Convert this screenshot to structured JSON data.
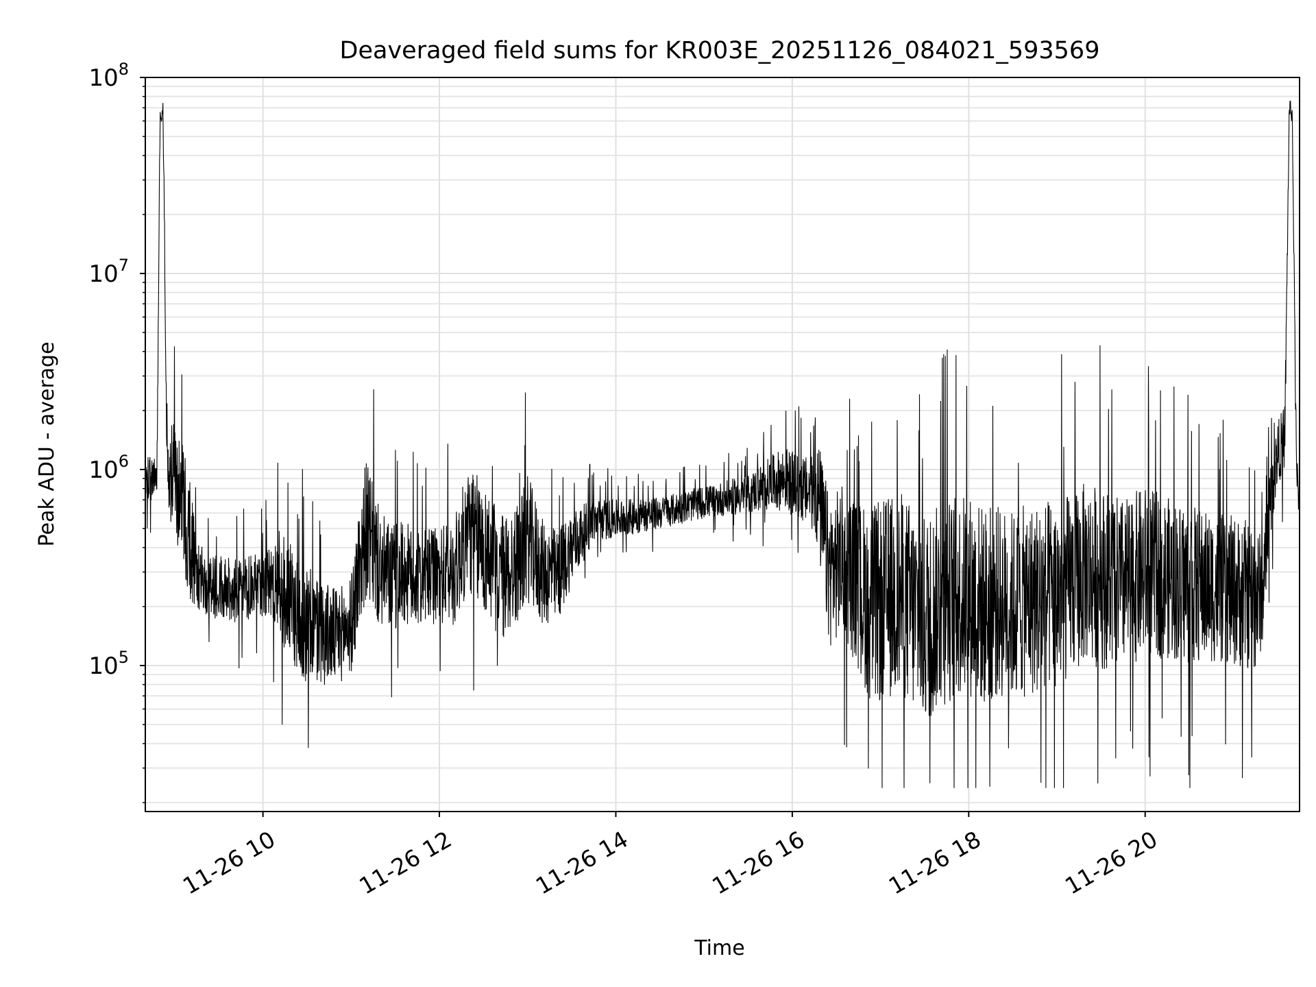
{
  "chart_data": {
    "type": "line",
    "title": "Deaveraged field sums for KR003E_20251126_084021_593569",
    "xlabel": "Time",
    "ylabel": "Peak ADU - average",
    "yscale": "log",
    "ylim": [
      18000,
      100000000
    ],
    "xlim": [
      "2025-11-26 08:40",
      "2025-11-26 21:45"
    ],
    "grid": true,
    "grid_minor": true,
    "legend": "none",
    "line_color": "#000000",
    "x_ticks": [
      {
        "time": "2025-11-26 10:00",
        "label": "11-26 10"
      },
      {
        "time": "2025-11-26 12:00",
        "label": "11-26 12"
      },
      {
        "time": "2025-11-26 14:00",
        "label": "11-26 14"
      },
      {
        "time": "2025-11-26 16:00",
        "label": "11-26 16"
      },
      {
        "time": "2025-11-26 18:00",
        "label": "11-26 18"
      },
      {
        "time": "2025-11-26 20:00",
        "label": "11-26 20"
      }
    ],
    "y_ticks": [
      {
        "value": 100000,
        "base": "10",
        "exp": "5"
      },
      {
        "value": 1000000,
        "base": "10",
        "exp": "6"
      },
      {
        "value": 10000000,
        "base": "10",
        "exp": "7"
      },
      {
        "value": 100000000,
        "base": "10",
        "exp": "8"
      }
    ],
    "series": [
      {
        "x": [
          "2025-11-26 08:40",
          "2025-11-26 08:45",
          "2025-11-26 08:48",
          "2025-11-26 08:50",
          "2025-11-26 08:52",
          "2025-11-26 08:55",
          "2025-11-26 09:00",
          "2025-11-26 09:05",
          "2025-11-26 09:10",
          "2025-11-26 09:15",
          "2025-11-26 09:20",
          "2025-11-26 09:30",
          "2025-11-26 09:45",
          "2025-11-26 10:00",
          "2025-11-26 10:10",
          "2025-11-26 10:15",
          "2025-11-26 10:20",
          "2025-11-26 10:30",
          "2025-11-26 10:40",
          "2025-11-26 10:50",
          "2025-11-26 11:00",
          "2025-11-26 11:05",
          "2025-11-26 11:10",
          "2025-11-26 11:20",
          "2025-11-26 11:30",
          "2025-11-26 11:35",
          "2025-11-26 11:45",
          "2025-11-26 12:00",
          "2025-11-26 12:10",
          "2025-11-26 12:20",
          "2025-11-26 12:30",
          "2025-11-26 12:40",
          "2025-11-26 12:45",
          "2025-11-26 12:55",
          "2025-11-26 13:00",
          "2025-11-26 13:10",
          "2025-11-26 13:20",
          "2025-11-26 13:30",
          "2025-11-26 13:45",
          "2025-11-26 14:00",
          "2025-11-26 14:30",
          "2025-11-26 15:00",
          "2025-11-26 15:30",
          "2025-11-26 15:45",
          "2025-11-26 15:55",
          "2025-11-26 16:05",
          "2025-11-26 16:15",
          "2025-11-26 16:18",
          "2025-11-26 16:25",
          "2025-11-26 16:35",
          "2025-11-26 16:45",
          "2025-11-26 16:55",
          "2025-11-26 17:05",
          "2025-11-26 17:15",
          "2025-11-26 17:25",
          "2025-11-26 17:30",
          "2025-11-26 17:40",
          "2025-11-26 17:50",
          "2025-11-26 18:00",
          "2025-11-26 18:10",
          "2025-11-26 18:20",
          "2025-11-26 18:30",
          "2025-11-26 18:45",
          "2025-11-26 19:00",
          "2025-11-26 19:10",
          "2025-11-26 19:20",
          "2025-11-26 19:30",
          "2025-11-26 19:45",
          "2025-11-26 20:00",
          "2025-11-26 20:15",
          "2025-11-26 20:30",
          "2025-11-26 20:45",
          "2025-11-26 21:00",
          "2025-11-26 21:10",
          "2025-11-26 21:15",
          "2025-11-26 21:20",
          "2025-11-26 21:25",
          "2025-11-26 21:30",
          "2025-11-26 21:35",
          "2025-11-26 21:38",
          "2025-11-26 21:40",
          "2025-11-26 21:43",
          "2025-11-26 21:45"
        ],
        "y": [
          850000,
          900000,
          950000,
          60000000,
          70000000,
          950000,
          900000,
          700000,
          450000,
          300000,
          260000,
          250000,
          240000,
          260000,
          280000,
          230000,
          200000,
          160000,
          150000,
          140000,
          160000,
          300000,
          500000,
          300000,
          280000,
          300000,
          270000,
          290000,
          300000,
          500000,
          400000,
          300000,
          280000,
          350000,
          450000,
          300000,
          280000,
          400000,
          550000,
          560000,
          600000,
          680000,
          750000,
          850000,
          900000,
          800000,
          750000,
          700000,
          300000,
          350000,
          250000,
          200000,
          220000,
          230000,
          180000,
          170000,
          200000,
          220000,
          230000,
          200000,
          210000,
          200000,
          220000,
          230000,
          260000,
          300000,
          280000,
          260000,
          300000,
          280000,
          260000,
          250000,
          240000,
          230000,
          220000,
          240000,
          700000,
          1200000,
          1500000,
          70000000,
          65000000,
          900000,
          750000
        ],
        "noise": [
          0.25,
          0.2,
          0.15,
          0.1,
          0.08,
          0.45,
          0.55,
          0.55,
          0.6,
          0.35,
          0.3,
          0.3,
          0.3,
          0.3,
          0.45,
          0.55,
          0.55,
          0.55,
          0.5,
          0.45,
          0.45,
          0.6,
          0.65,
          0.55,
          0.5,
          0.5,
          0.45,
          0.45,
          0.5,
          0.6,
          0.6,
          0.6,
          0.6,
          0.55,
          0.6,
          0.5,
          0.45,
          0.35,
          0.2,
          0.18,
          0.15,
          0.15,
          0.18,
          0.25,
          0.3,
          0.3,
          0.35,
          0.55,
          0.7,
          0.7,
          0.8,
          0.95,
          0.95,
          0.95,
          1.0,
          1.0,
          0.95,
          0.95,
          0.95,
          0.95,
          0.9,
          0.9,
          0.9,
          0.9,
          0.85,
          0.85,
          0.85,
          0.8,
          0.8,
          0.75,
          0.75,
          0.7,
          0.7,
          0.7,
          0.7,
          0.5,
          0.35,
          0.3,
          0.3,
          0.1,
          0.08,
          0.2,
          0.25
        ]
      }
    ],
    "annotations": []
  }
}
